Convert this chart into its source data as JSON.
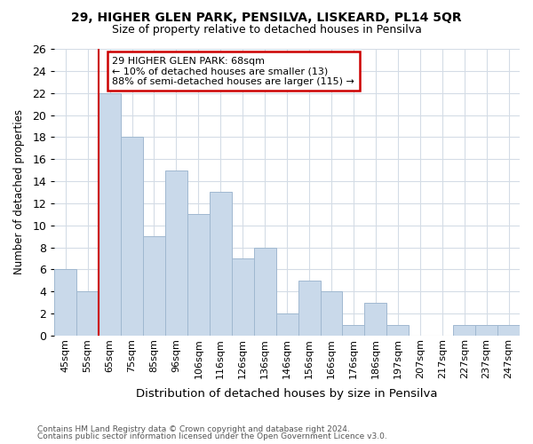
{
  "title1": "29, HIGHER GLEN PARK, PENSILVA, LISKEARD, PL14 5QR",
  "title2": "Size of property relative to detached houses in Pensilva",
  "xlabel": "Distribution of detached houses by size in Pensilva",
  "ylabel": "Number of detached properties",
  "footnote1": "Contains HM Land Registry data © Crown copyright and database right 2024.",
  "footnote2": "Contains public sector information licensed under the Open Government Licence v3.0.",
  "bin_labels": [
    "45sqm",
    "55sqm",
    "65sqm",
    "75sqm",
    "85sqm",
    "96sqm",
    "106sqm",
    "116sqm",
    "126sqm",
    "136sqm",
    "146sqm",
    "156sqm",
    "166sqm",
    "176sqm",
    "186sqm",
    "197sqm",
    "207sqm",
    "217sqm",
    "227sqm",
    "237sqm",
    "247sqm"
  ],
  "bar_heights": [
    6,
    4,
    22,
    18,
    9,
    15,
    11,
    13,
    7,
    8,
    2,
    5,
    4,
    1,
    3,
    1,
    0,
    0,
    1,
    1,
    1
  ],
  "bar_color": "#c9d9ea",
  "bar_edge_color": "#a0b8d0",
  "grid_color": "#d4dce6",
  "annotation_box_color": "#cc0000",
  "property_line_color": "#cc0000",
  "property_line_x": 1.5,
  "annotation_text": "29 HIGHER GLEN PARK: 68sqm\n← 10% of detached houses are smaller (13)\n88% of semi-detached houses are larger (115) →",
  "ylim": [
    0,
    26
  ],
  "yticks": [
    0,
    2,
    4,
    6,
    8,
    10,
    12,
    14,
    16,
    18,
    20,
    22,
    24,
    26
  ],
  "background_color": "#ffffff"
}
